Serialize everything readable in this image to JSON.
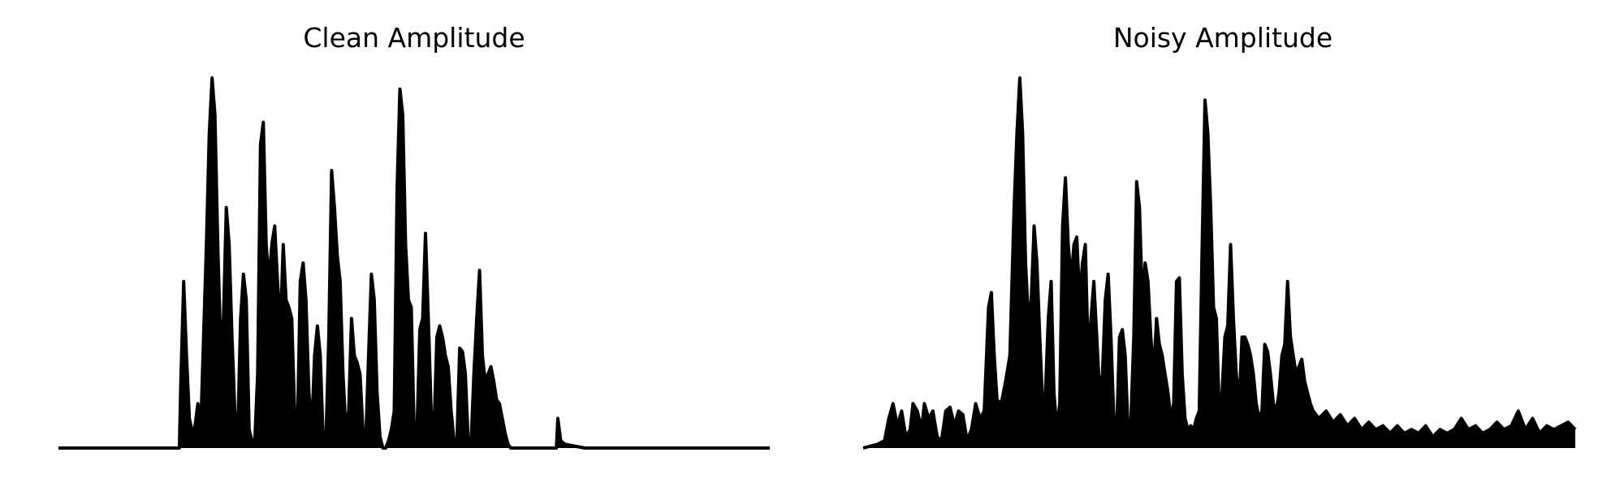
{
  "figure": {
    "background": "#ffffff",
    "line_color": "#000000"
  },
  "chart_data": [
    {
      "type": "area",
      "title": "Clean Amplitude",
      "axes_visible": false,
      "grid": false,
      "xlim": [
        0,
        1
      ],
      "ylim": [
        0,
        1
      ],
      "envelope": [
        [
          0.0,
          0.0
        ],
        [
          0.17,
          0.0
        ],
        [
          0.172,
          0.18
        ],
        [
          0.176,
          0.45
        ],
        [
          0.18,
          0.25
        ],
        [
          0.184,
          0.08
        ],
        [
          0.19,
          0.03
        ],
        [
          0.196,
          0.12
        ],
        [
          0.2,
          0.05
        ],
        [
          0.204,
          0.3
        ],
        [
          0.208,
          0.55
        ],
        [
          0.212,
          0.85
        ],
        [
          0.216,
          1.0
        ],
        [
          0.22,
          0.9
        ],
        [
          0.224,
          0.55
        ],
        [
          0.228,
          0.28
        ],
        [
          0.232,
          0.35
        ],
        [
          0.236,
          0.65
        ],
        [
          0.24,
          0.55
        ],
        [
          0.244,
          0.3
        ],
        [
          0.248,
          0.1
        ],
        [
          0.252,
          0.04
        ],
        [
          0.256,
          0.35
        ],
        [
          0.26,
          0.47
        ],
        [
          0.264,
          0.4
        ],
        [
          0.268,
          0.05
        ],
        [
          0.272,
          0.02
        ],
        [
          0.276,
          0.02
        ],
        [
          0.28,
          0.2
        ],
        [
          0.284,
          0.82
        ],
        [
          0.288,
          0.88
        ],
        [
          0.292,
          0.55
        ],
        [
          0.296,
          0.45
        ],
        [
          0.3,
          0.55
        ],
        [
          0.304,
          0.6
        ],
        [
          0.308,
          0.45
        ],
        [
          0.312,
          0.32
        ],
        [
          0.316,
          0.55
        ],
        [
          0.32,
          0.4
        ],
        [
          0.324,
          0.38
        ],
        [
          0.328,
          0.35
        ],
        [
          0.332,
          0.1
        ],
        [
          0.336,
          0.05
        ],
        [
          0.34,
          0.45
        ],
        [
          0.344,
          0.5
        ],
        [
          0.348,
          0.4
        ],
        [
          0.352,
          0.15
        ],
        [
          0.356,
          0.05
        ],
        [
          0.36,
          0.25
        ],
        [
          0.364,
          0.33
        ],
        [
          0.368,
          0.25
        ],
        [
          0.372,
          0.03
        ],
        [
          0.376,
          0.02
        ],
        [
          0.38,
          0.3
        ],
        [
          0.384,
          0.75
        ],
        [
          0.388,
          0.65
        ],
        [
          0.392,
          0.52
        ],
        [
          0.396,
          0.45
        ],
        [
          0.4,
          0.2
        ],
        [
          0.404,
          0.05
        ],
        [
          0.408,
          0.1
        ],
        [
          0.412,
          0.35
        ],
        [
          0.416,
          0.25
        ],
        [
          0.42,
          0.23
        ],
        [
          0.424,
          0.2
        ],
        [
          0.428,
          0.05
        ],
        [
          0.432,
          0.02
        ],
        [
          0.436,
          0.25
        ],
        [
          0.44,
          0.47
        ],
        [
          0.444,
          0.4
        ],
        [
          0.448,
          0.15
        ],
        [
          0.452,
          0.03
        ],
        [
          0.456,
          0.0
        ],
        [
          0.46,
          0.0
        ],
        [
          0.464,
          0.02
        ],
        [
          0.468,
          0.05
        ],
        [
          0.472,
          0.1
        ],
        [
          0.476,
          0.7
        ],
        [
          0.48,
          0.97
        ],
        [
          0.484,
          0.9
        ],
        [
          0.488,
          0.55
        ],
        [
          0.492,
          0.4
        ],
        [
          0.496,
          0.38
        ],
        [
          0.5,
          0.05
        ],
        [
          0.504,
          0.04
        ],
        [
          0.508,
          0.32
        ],
        [
          0.512,
          0.35
        ],
        [
          0.516,
          0.58
        ],
        [
          0.52,
          0.35
        ],
        [
          0.524,
          0.1
        ],
        [
          0.528,
          0.05
        ],
        [
          0.532,
          0.3
        ],
        [
          0.536,
          0.33
        ],
        [
          0.54,
          0.3
        ],
        [
          0.544,
          0.25
        ],
        [
          0.548,
          0.22
        ],
        [
          0.552,
          0.1
        ],
        [
          0.556,
          0.02
        ],
        [
          0.56,
          0.01
        ],
        [
          0.564,
          0.27
        ],
        [
          0.568,
          0.26
        ],
        [
          0.572,
          0.2
        ],
        [
          0.576,
          0.02
        ],
        [
          0.58,
          0.01
        ],
        [
          0.584,
          0.2
        ],
        [
          0.588,
          0.35
        ],
        [
          0.592,
          0.48
        ],
        [
          0.596,
          0.25
        ],
        [
          0.6,
          0.18
        ],
        [
          0.604,
          0.2
        ],
        [
          0.608,
          0.22
        ],
        [
          0.612,
          0.18
        ],
        [
          0.616,
          0.13
        ],
        [
          0.62,
          0.12
        ],
        [
          0.624,
          0.08
        ],
        [
          0.628,
          0.04
        ],
        [
          0.632,
          0.01
        ],
        [
          0.636,
          0.0
        ],
        [
          0.7,
          0.0
        ],
        [
          0.702,
          0.08
        ],
        [
          0.706,
          0.02
        ],
        [
          0.712,
          0.01
        ],
        [
          0.74,
          0.0
        ],
        [
          0.76,
          0.0
        ],
        [
          1.0,
          0.0
        ]
      ]
    },
    {
      "type": "area",
      "title": "Noisy Amplitude",
      "axes_visible": false,
      "grid": false,
      "xlim": [
        0,
        1
      ],
      "ylim": [
        0,
        1
      ],
      "envelope": [
        [
          0.0,
          0.0
        ],
        [
          0.01,
          0.005
        ],
        [
          0.02,
          0.01
        ],
        [
          0.03,
          0.02
        ],
        [
          0.036,
          0.08
        ],
        [
          0.042,
          0.12
        ],
        [
          0.048,
          0.06
        ],
        [
          0.054,
          0.1
        ],
        [
          0.06,
          0.03
        ],
        [
          0.066,
          0.05
        ],
        [
          0.07,
          0.12
        ],
        [
          0.076,
          0.1
        ],
        [
          0.082,
          0.05
        ],
        [
          0.086,
          0.12
        ],
        [
          0.092,
          0.08
        ],
        [
          0.098,
          0.1
        ],
        [
          0.104,
          0.03
        ],
        [
          0.11,
          0.02
        ],
        [
          0.116,
          0.1
        ],
        [
          0.122,
          0.11
        ],
        [
          0.128,
          0.06
        ],
        [
          0.134,
          0.1
        ],
        [
          0.14,
          0.09
        ],
        [
          0.146,
          0.02
        ],
        [
          0.152,
          0.05
        ],
        [
          0.158,
          0.12
        ],
        [
          0.164,
          0.08
        ],
        [
          0.17,
          0.1
        ],
        [
          0.176,
          0.38
        ],
        [
          0.18,
          0.42
        ],
        [
          0.184,
          0.25
        ],
        [
          0.188,
          0.13
        ],
        [
          0.194,
          0.12
        ],
        [
          0.2,
          0.18
        ],
        [
          0.206,
          0.25
        ],
        [
          0.212,
          0.65
        ],
        [
          0.216,
          0.85
        ],
        [
          0.22,
          1.0
        ],
        [
          0.224,
          0.85
        ],
        [
          0.228,
          0.5
        ],
        [
          0.232,
          0.35
        ],
        [
          0.236,
          0.4
        ],
        [
          0.24,
          0.6
        ],
        [
          0.244,
          0.5
        ],
        [
          0.248,
          0.3
        ],
        [
          0.252,
          0.12
        ],
        [
          0.256,
          0.15
        ],
        [
          0.26,
          0.35
        ],
        [
          0.264,
          0.45
        ],
        [
          0.268,
          0.15
        ],
        [
          0.272,
          0.05
        ],
        [
          0.276,
          0.12
        ],
        [
          0.28,
          0.6
        ],
        [
          0.284,
          0.73
        ],
        [
          0.288,
          0.55
        ],
        [
          0.292,
          0.45
        ],
        [
          0.296,
          0.55
        ],
        [
          0.3,
          0.57
        ],
        [
          0.304,
          0.4
        ],
        [
          0.308,
          0.5
        ],
        [
          0.312,
          0.55
        ],
        [
          0.316,
          0.25
        ],
        [
          0.32,
          0.35
        ],
        [
          0.324,
          0.45
        ],
        [
          0.328,
          0.3
        ],
        [
          0.332,
          0.15
        ],
        [
          0.336,
          0.2
        ],
        [
          0.34,
          0.4
        ],
        [
          0.344,
          0.47
        ],
        [
          0.348,
          0.3
        ],
        [
          0.352,
          0.08
        ],
        [
          0.356,
          0.05
        ],
        [
          0.36,
          0.3
        ],
        [
          0.364,
          0.32
        ],
        [
          0.368,
          0.25
        ],
        [
          0.372,
          0.05
        ],
        [
          0.376,
          0.08
        ],
        [
          0.38,
          0.3
        ],
        [
          0.384,
          0.72
        ],
        [
          0.388,
          0.65
        ],
        [
          0.392,
          0.4
        ],
        [
          0.396,
          0.5
        ],
        [
          0.4,
          0.45
        ],
        [
          0.404,
          0.3
        ],
        [
          0.408,
          0.2
        ],
        [
          0.412,
          0.35
        ],
        [
          0.416,
          0.28
        ],
        [
          0.42,
          0.25
        ],
        [
          0.424,
          0.2
        ],
        [
          0.428,
          0.15
        ],
        [
          0.432,
          0.08
        ],
        [
          0.436,
          0.12
        ],
        [
          0.44,
          0.45
        ],
        [
          0.444,
          0.46
        ],
        [
          0.448,
          0.2
        ],
        [
          0.452,
          0.08
        ],
        [
          0.456,
          0.05
        ],
        [
          0.46,
          0.06
        ],
        [
          0.464,
          0.05
        ],
        [
          0.468,
          0.08
        ],
        [
          0.472,
          0.1
        ],
        [
          0.476,
          0.55
        ],
        [
          0.48,
          0.94
        ],
        [
          0.484,
          0.85
        ],
        [
          0.488,
          0.65
        ],
        [
          0.492,
          0.38
        ],
        [
          0.496,
          0.35
        ],
        [
          0.5,
          0.1
        ],
        [
          0.504,
          0.15
        ],
        [
          0.508,
          0.3
        ],
        [
          0.512,
          0.33
        ],
        [
          0.516,
          0.55
        ],
        [
          0.52,
          0.35
        ],
        [
          0.524,
          0.2
        ],
        [
          0.528,
          0.12
        ],
        [
          0.532,
          0.3
        ],
        [
          0.536,
          0.3
        ],
        [
          0.54,
          0.28
        ],
        [
          0.544,
          0.25
        ],
        [
          0.548,
          0.2
        ],
        [
          0.552,
          0.12
        ],
        [
          0.556,
          0.08
        ],
        [
          0.56,
          0.1
        ],
        [
          0.564,
          0.28
        ],
        [
          0.568,
          0.26
        ],
        [
          0.572,
          0.2
        ],
        [
          0.576,
          0.12
        ],
        [
          0.58,
          0.1
        ],
        [
          0.584,
          0.15
        ],
        [
          0.588,
          0.25
        ],
        [
          0.592,
          0.28
        ],
        [
          0.596,
          0.45
        ],
        [
          0.6,
          0.3
        ],
        [
          0.604,
          0.25
        ],
        [
          0.608,
          0.2
        ],
        [
          0.612,
          0.22
        ],
        [
          0.616,
          0.24
        ],
        [
          0.62,
          0.18
        ],
        [
          0.624,
          0.15
        ],
        [
          0.628,
          0.12
        ],
        [
          0.632,
          0.1
        ],
        [
          0.64,
          0.08
        ],
        [
          0.65,
          0.1
        ],
        [
          0.66,
          0.07
        ],
        [
          0.67,
          0.09
        ],
        [
          0.68,
          0.06
        ],
        [
          0.69,
          0.08
        ],
        [
          0.7,
          0.05
        ],
        [
          0.71,
          0.07
        ],
        [
          0.72,
          0.05
        ],
        [
          0.73,
          0.06
        ],
        [
          0.74,
          0.04
        ],
        [
          0.75,
          0.06
        ],
        [
          0.76,
          0.04
        ],
        [
          0.77,
          0.05
        ],
        [
          0.78,
          0.04
        ],
        [
          0.79,
          0.06
        ],
        [
          0.8,
          0.03
        ],
        [
          0.81,
          0.05
        ],
        [
          0.82,
          0.04
        ],
        [
          0.83,
          0.05
        ],
        [
          0.84,
          0.08
        ],
        [
          0.85,
          0.05
        ],
        [
          0.86,
          0.06
        ],
        [
          0.87,
          0.04
        ],
        [
          0.88,
          0.05
        ],
        [
          0.89,
          0.07
        ],
        [
          0.9,
          0.05
        ],
        [
          0.91,
          0.06
        ],
        [
          0.92,
          0.1
        ],
        [
          0.93,
          0.05
        ],
        [
          0.94,
          0.08
        ],
        [
          0.95,
          0.04
        ],
        [
          0.96,
          0.06
        ],
        [
          0.97,
          0.05
        ],
        [
          0.98,
          0.06
        ],
        [
          0.99,
          0.07
        ],
        [
          1.0,
          0.05
        ]
      ]
    }
  ]
}
